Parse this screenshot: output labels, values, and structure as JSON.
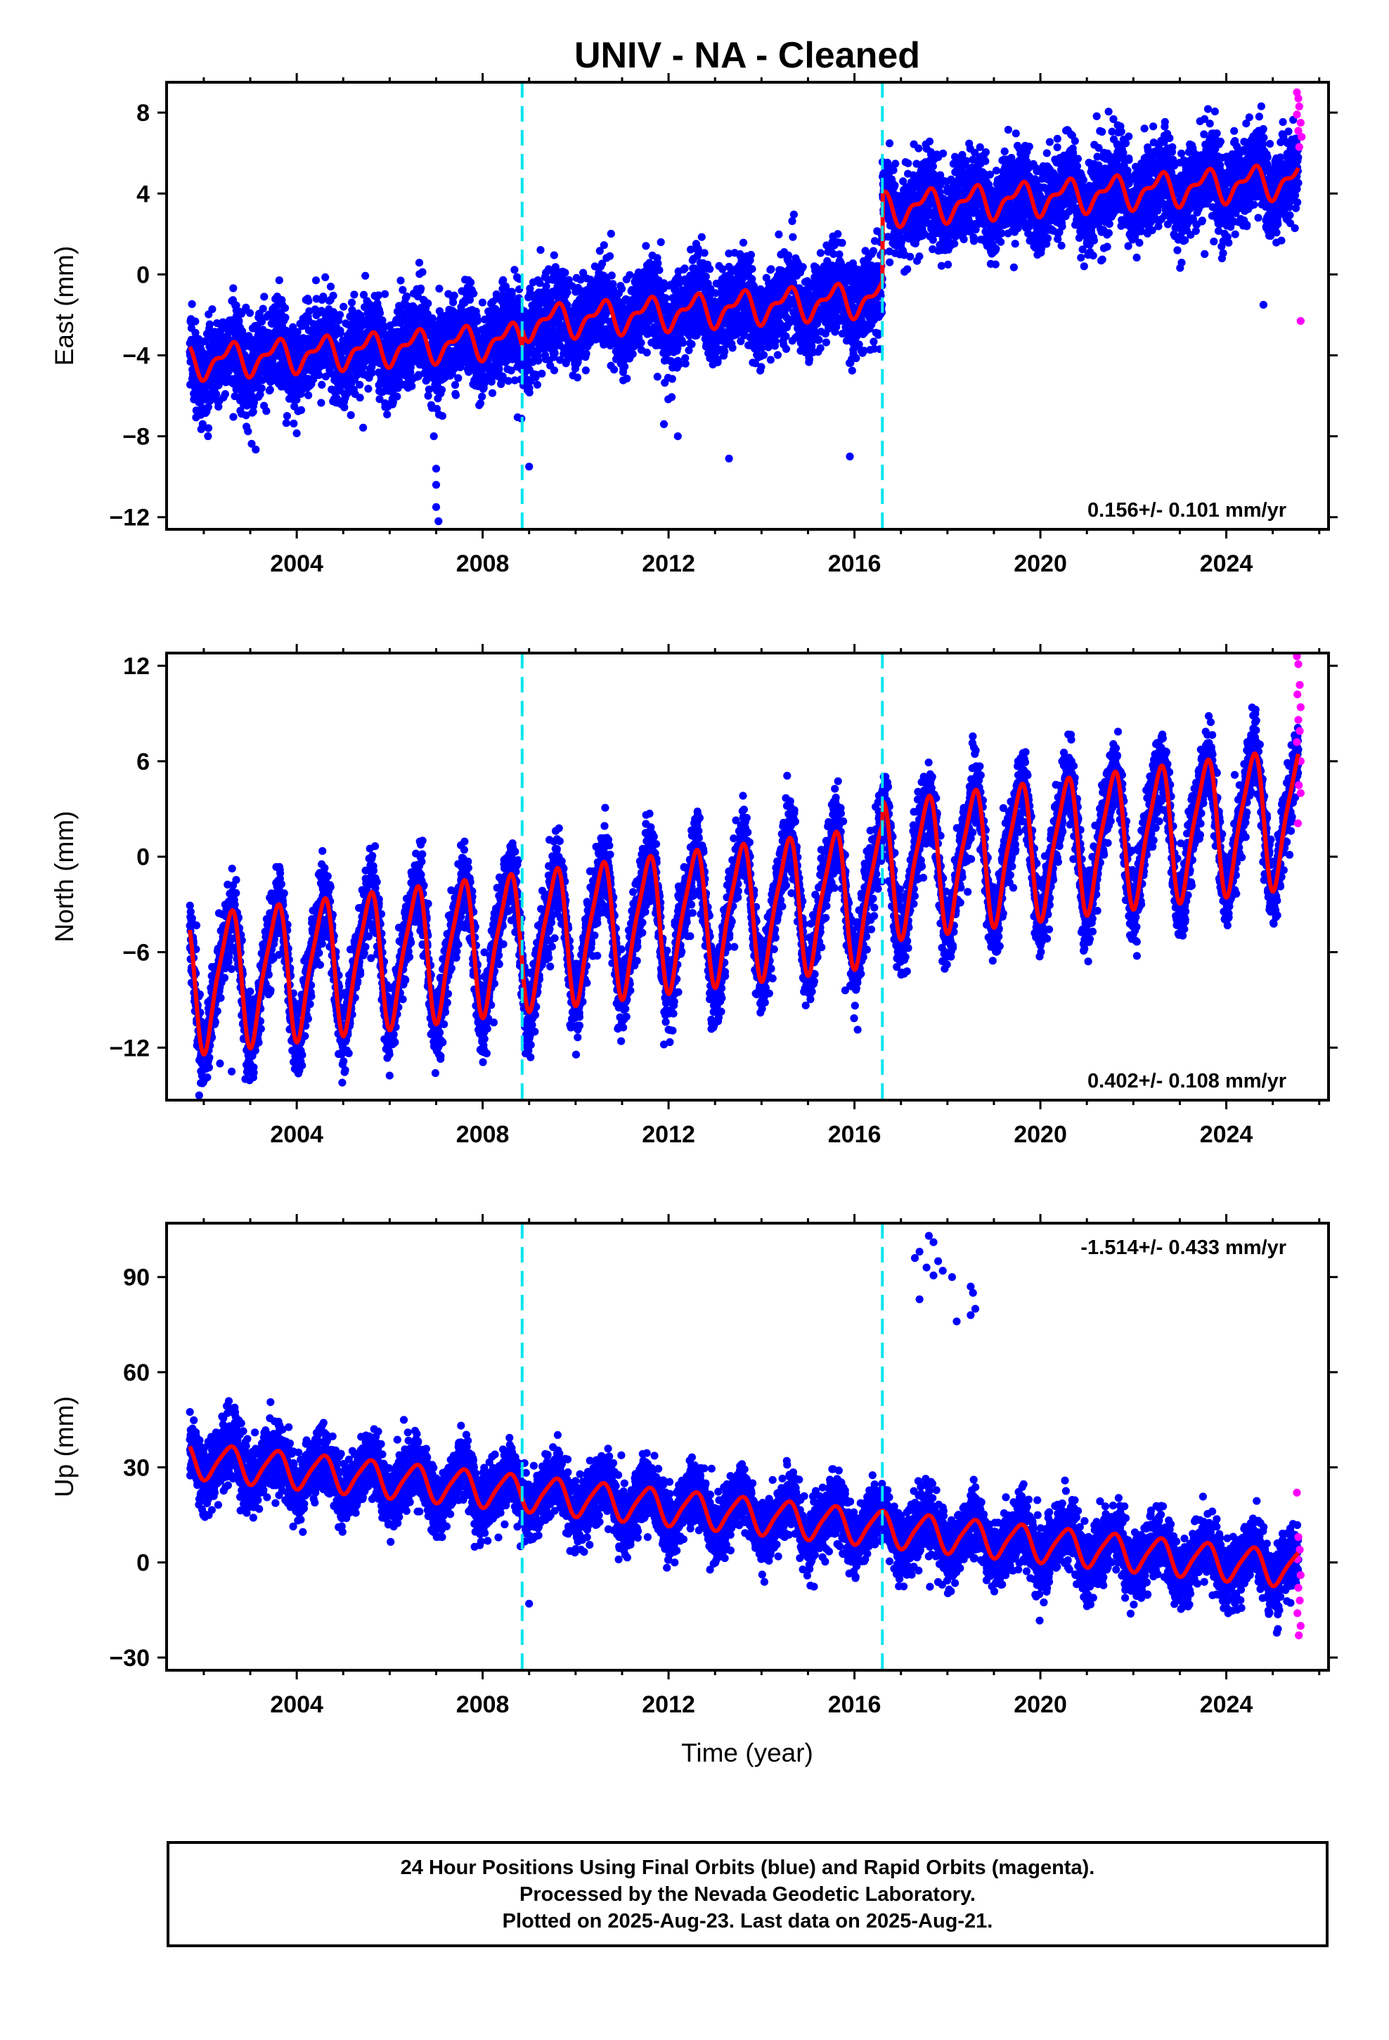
{
  "title": "UNIV  - NA - Cleaned",
  "footer": {
    "line1": "24 Hour Positions Using Final Orbits (blue) and Rapid Orbits (magenta).",
    "line2": "Processed by the Nevada Geodetic Laboratory.",
    "line3": "Plotted on 2025-Aug-23. Last data on 2025-Aug-21."
  },
  "colors": {
    "final": "#0000ff",
    "rapid": "#ff00ff",
    "model": "#ff0000",
    "offset": "#00e5ee"
  },
  "chart_data": [
    {
      "type": "scatter",
      "ylabel": "East (mm)",
      "xlabel": "",
      "xlim": [
        2001.2,
        2026.2
      ],
      "ylim": [
        -12.6,
        9.5
      ],
      "xticks": [
        "2004",
        "2008",
        "2012",
        "2016",
        "2020",
        "2024"
      ],
      "yticks": [
        "8",
        "4",
        "0",
        "-4",
        "-8",
        "-12"
      ],
      "ytick_values": [
        8,
        4,
        0,
        -4,
        -8,
        -12
      ],
      "rate": "0.156+/- 0.101 mm/yr",
      "offset_lines": [
        2008.85,
        2016.6
      ],
      "model": {
        "start": 2001.7,
        "end": 2025.55,
        "mean_before": -3.2,
        "step1": 2008.85,
        "jump1": 0.8,
        "step2": 2016.6,
        "jump2": 4.4,
        "trend": 0.16,
        "annual_amp": 0.7,
        "semi_amp": 0.35,
        "noise": 1.1
      },
      "outliers": [
        [
          2007.0,
          -11.5
        ],
        [
          2007.05,
          -12.2
        ],
        [
          2007.0,
          -10.4
        ],
        [
          2007.0,
          -9.6
        ],
        [
          2006.95,
          -8.0
        ],
        [
          2002.1,
          -7.6
        ],
        [
          2009.0,
          -9.5
        ],
        [
          2012.2,
          -8.0
        ],
        [
          2013.3,
          -9.1
        ],
        [
          2015.9,
          -9.0
        ],
        [
          2011.9,
          -7.4
        ],
        [
          2024.8,
          -1.5
        ]
      ],
      "rapid": [
        [
          2025.52,
          9.0
        ],
        [
          2025.55,
          8.7
        ],
        [
          2025.57,
          8.3
        ],
        [
          2025.52,
          7.9
        ],
        [
          2025.6,
          7.5
        ],
        [
          2025.55,
          7.1
        ],
        [
          2025.62,
          6.8
        ],
        [
          2025.57,
          6.3
        ],
        [
          2025.6,
          -2.3
        ]
      ],
      "series": [
        {
          "name": "Final Orbits",
          "color": "#0000ff"
        },
        {
          "name": "Rapid Orbits",
          "color": "#ff00ff"
        }
      ]
    },
    {
      "type": "scatter",
      "ylabel": "North (mm)",
      "xlabel": "",
      "xlim": [
        2001.2,
        2026.2
      ],
      "ylim": [
        -15.3,
        12.8
      ],
      "xticks": [
        "2004",
        "2008",
        "2012",
        "2016",
        "2020",
        "2024"
      ],
      "yticks": [
        "12",
        "6",
        "0",
        "-6",
        "-12"
      ],
      "ytick_values": [
        12,
        6,
        0,
        -6,
        -12
      ],
      "rate": "0.402+/- 0.108 mm/yr",
      "offset_lines": [
        2008.85,
        2016.6
      ],
      "model": {
        "start": 2001.7,
        "end": 2025.55,
        "mean_before": -5.2,
        "step1": 2008.85,
        "jump1": 0.0,
        "step2": 2016.6,
        "jump2": 1.5,
        "trend": 0.38,
        "annual_amp": 4.1,
        "semi_amp": 0.9,
        "noise": 1.2
      },
      "outliers": [
        [
          2001.9,
          -15.0
        ],
        [
          2002.6,
          -13.5
        ],
        [
          2002.35,
          -13.0
        ],
        [
          2002.1,
          -12.8
        ],
        [
          2004.9,
          -12.4
        ],
        [
          2011.9,
          -11.8
        ],
        [
          2015.8,
          -8.4
        ],
        [
          2015.9,
          -5.8
        ]
      ],
      "rapid": [
        [
          2025.52,
          12.6
        ],
        [
          2025.55,
          12.1
        ],
        [
          2025.58,
          10.8
        ],
        [
          2025.53,
          10.2
        ],
        [
          2025.6,
          9.4
        ],
        [
          2025.55,
          8.6
        ],
        [
          2025.58,
          7.9
        ],
        [
          2025.52,
          7.2
        ],
        [
          2025.6,
          6.0
        ],
        [
          2025.56,
          4.5
        ],
        [
          2025.6,
          4.0
        ],
        [
          2025.54,
          2.1
        ]
      ],
      "series": [
        {
          "name": "Final Orbits",
          "color": "#0000ff"
        },
        {
          "name": "Rapid Orbits",
          "color": "#ff00ff"
        }
      ]
    },
    {
      "type": "scatter",
      "ylabel": "Up (mm)",
      "xlabel": "Time (year)",
      "xlim": [
        2001.2,
        2026.2
      ],
      "ylim": [
        -34.0,
        107.0
      ],
      "xticks": [
        "2004",
        "2008",
        "2012",
        "2016",
        "2020",
        "2024"
      ],
      "yticks": [
        "90",
        "60",
        "30",
        "0",
        "-30"
      ],
      "ytick_values": [
        90,
        60,
        30,
        0,
        -30
      ],
      "rate": "-1.514+/- 0.433 mm/yr",
      "offset_lines": [
        2008.85,
        2016.6
      ],
      "model": {
        "start": 2001.7,
        "end": 2025.55,
        "mean_before": 22.0,
        "step1": 2008.85,
        "jump1": 0.0,
        "step2": 2016.6,
        "jump2": 0.0,
        "trend": -1.45,
        "annual_amp": 5.5,
        "semi_amp": 1.0,
        "noise": 5.0
      },
      "outliers": [
        [
          2017.6,
          103.0
        ],
        [
          2017.7,
          101.0
        ],
        [
          2017.4,
          98.0
        ],
        [
          2017.3,
          96.0
        ],
        [
          2017.8,
          95.0
        ],
        [
          2017.55,
          93.0
        ],
        [
          2017.9,
          92.0
        ],
        [
          2018.1,
          90.0
        ],
        [
          2017.7,
          90.5
        ],
        [
          2018.5,
          87.0
        ],
        [
          2018.55,
          85.0
        ],
        [
          2017.4,
          83.0
        ],
        [
          2018.6,
          80.0
        ],
        [
          2018.5,
          78.0
        ],
        [
          2018.2,
          76.0
        ],
        [
          2003.1,
          41.0
        ],
        [
          2009.0,
          -13.0
        ]
      ],
      "rapid": [
        [
          2025.52,
          22.0
        ],
        [
          2025.55,
          8.0
        ],
        [
          2025.58,
          4.0
        ],
        [
          2025.53,
          1.0
        ],
        [
          2025.6,
          -4.0
        ],
        [
          2025.55,
          -8.0
        ],
        [
          2025.58,
          -12.0
        ],
        [
          2025.53,
          -16.0
        ],
        [
          2025.6,
          -20.0
        ],
        [
          2025.56,
          -23.0
        ]
      ],
      "series": [
        {
          "name": "Final Orbits",
          "color": "#0000ff"
        },
        {
          "name": "Rapid Orbits",
          "color": "#ff00ff"
        }
      ]
    }
  ]
}
